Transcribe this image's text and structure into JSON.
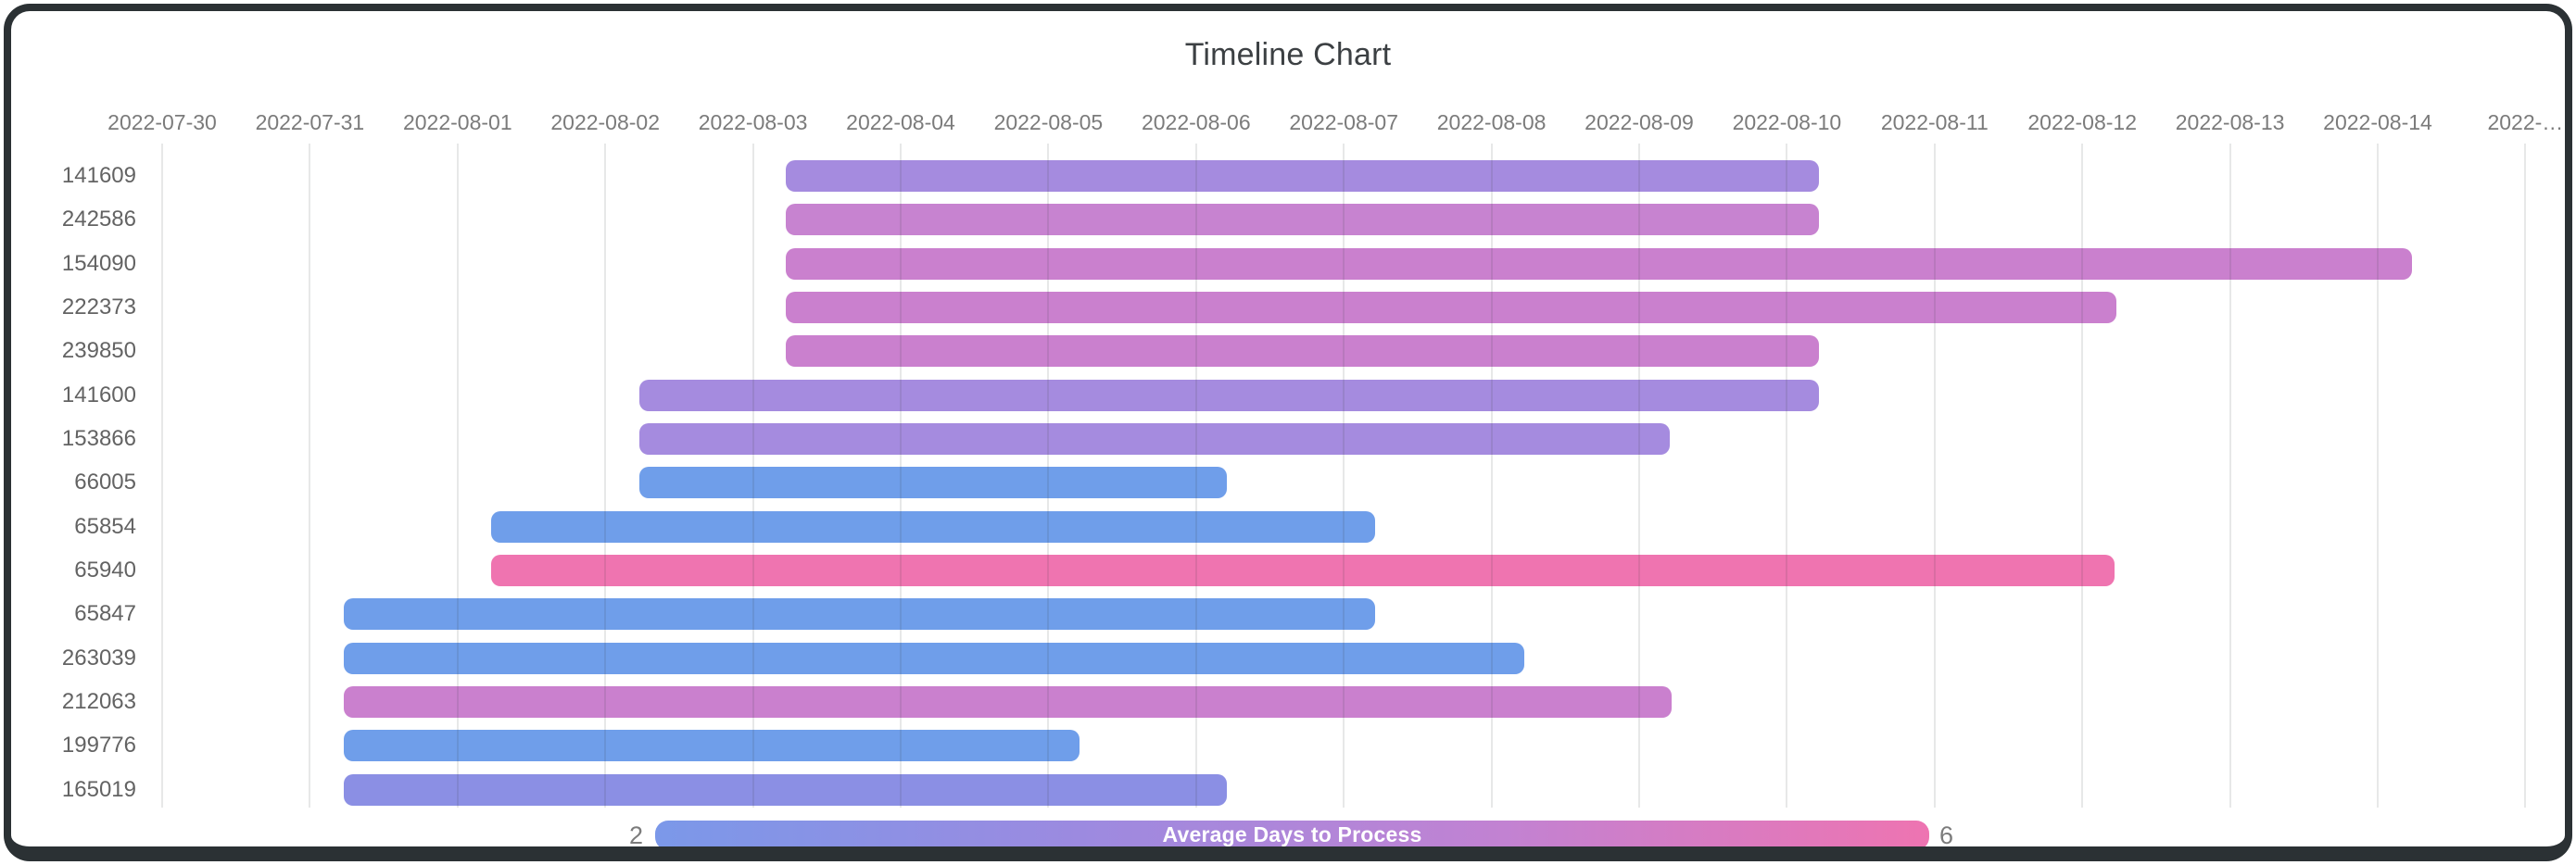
{
  "title": "Timeline Chart",
  "legend": {
    "label": "Average Days to Process",
    "min_label": "2",
    "max_label": "6",
    "gradient_colors": [
      "#7b98e9",
      "#9c8ae0",
      "#c282d2",
      "#ee74b1"
    ]
  },
  "chart_data": {
    "type": "bar",
    "variant": "timeline-gantt",
    "title": "Timeline Chart",
    "grid": true,
    "legend_position": "bottom",
    "axis_origin_date": "2022-07-30",
    "x_axis_tick_labels": [
      "2022-07-30",
      "2022-07-31",
      "2022-08-01",
      "2022-08-02",
      "2022-08-03",
      "2022-08-04",
      "2022-08-05",
      "2022-08-06",
      "2022-08-07",
      "2022-08-08",
      "2022-08-09",
      "2022-08-10",
      "2022-08-11",
      "2022-08-12",
      "2022-08-13",
      "2022-08-14",
      "2022-…"
    ],
    "color_scale": {
      "label": "Average Days to Process",
      "min": 2,
      "max": 6,
      "min_color": "#7b98e9",
      "max_color": "#ee74b1"
    },
    "rows": [
      {
        "label": "141609",
        "start_day": 4.22,
        "end_day": 11.22,
        "duration_days": 7,
        "color": "#a58bdf"
      },
      {
        "label": "242586",
        "start_day": 4.22,
        "end_day": 11.22,
        "duration_days": 7,
        "color": "#c783d0"
      },
      {
        "label": "154090",
        "start_day": 4.22,
        "end_day": 15.23,
        "duration_days": 11,
        "color": "#ca80ce"
      },
      {
        "label": "222373",
        "start_day": 4.22,
        "end_day": 13.23,
        "duration_days": 9,
        "color": "#ca80ce"
      },
      {
        "label": "239850",
        "start_day": 4.22,
        "end_day": 11.22,
        "duration_days": 7,
        "color": "#ca80ce"
      },
      {
        "label": "141600",
        "start_day": 3.23,
        "end_day": 11.22,
        "duration_days": 8,
        "color": "#a58bdf"
      },
      {
        "label": "153866",
        "start_day": 3.23,
        "end_day": 10.21,
        "duration_days": 7,
        "color": "#a58bdf"
      },
      {
        "label": "66005",
        "start_day": 3.23,
        "end_day": 7.21,
        "duration_days": 4,
        "color": "#6f9eea"
      },
      {
        "label": "65854",
        "start_day": 2.23,
        "end_day": 8.21,
        "duration_days": 6,
        "color": "#6f9eea"
      },
      {
        "label": "65940",
        "start_day": 2.23,
        "end_day": 13.22,
        "duration_days": 11,
        "color": "#ef74b0"
      },
      {
        "label": "65847",
        "start_day": 1.23,
        "end_day": 8.21,
        "duration_days": 7,
        "color": "#6f9eea"
      },
      {
        "label": "263039",
        "start_day": 1.23,
        "end_day": 9.22,
        "duration_days": 8,
        "color": "#6f9eea"
      },
      {
        "label": "212063",
        "start_day": 1.23,
        "end_day": 10.22,
        "duration_days": 9,
        "color": "#ca80ce"
      },
      {
        "label": "199776",
        "start_day": 1.23,
        "end_day": 6.21,
        "duration_days": 5,
        "color": "#6f9eea"
      },
      {
        "label": "165019",
        "start_day": 1.23,
        "end_day": 7.21,
        "duration_days": 6,
        "color": "#8b8fe4"
      }
    ]
  }
}
